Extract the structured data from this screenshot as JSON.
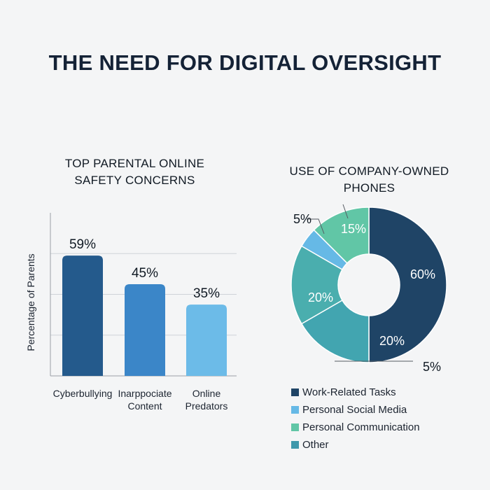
{
  "page": {
    "title": "THE NEED FOR DIGITAL OVERSIGHT"
  },
  "colors": {
    "background": "#f4f5f6",
    "title_text": "#142236"
  },
  "chart_data": [
    {
      "type": "bar",
      "title_lines": [
        "TOP PARENTAL ONLINE",
        "SAFETY CONCERNS"
      ],
      "ylabel": "Percentage of Parents",
      "xlabel": "",
      "categories": [
        [
          "Cyberbullying"
        ],
        [
          "Inarppociate",
          "Content"
        ],
        [
          "Online",
          "Predators"
        ]
      ],
      "values": [
        59,
        45,
        35
      ],
      "value_labels": [
        "59%",
        "45%",
        "35%"
      ],
      "colors": [
        "#245a8c",
        "#3b86c8",
        "#6cbbe8"
      ],
      "ylim": [
        0,
        80
      ],
      "grid": true
    },
    {
      "type": "pie",
      "style": "donut",
      "title_lines": [
        "USE OF COMPANY-OWNED",
        "PHONES"
      ],
      "slices": [
        {
          "label": "Work-Related Tasks",
          "value": 60,
          "display": "60%",
          "color": "#1f4466"
        },
        {
          "label": "Other",
          "value": 20,
          "display": "20%",
          "color": "#42a5b0"
        },
        {
          "label": "Other",
          "value": 20,
          "display": "20%",
          "color": "#4aaeae"
        },
        {
          "label": "Personal Social Media",
          "value": 5,
          "display": "5%",
          "color": "#66b9e6"
        },
        {
          "label": "Personal Communication",
          "value": 15,
          "display": "15%",
          "color": "#61c6a6"
        }
      ],
      "extra_label": "5%",
      "legend": [
        {
          "label": "Work-Related Tasks",
          "color": "#1f4466"
        },
        {
          "label": "Personal Social Media",
          "color": "#66b9e6"
        },
        {
          "label": "Personal Communication",
          "color": "#61c6a6"
        },
        {
          "label": "Other",
          "color": "#3f98ab"
        }
      ],
      "legend_position": "bottom"
    }
  ]
}
